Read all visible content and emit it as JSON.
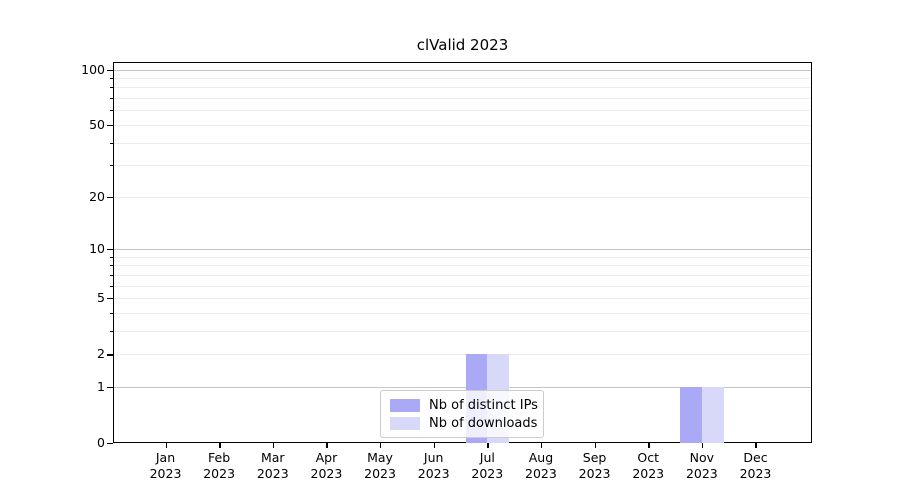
{
  "chart_data": {
    "type": "bar",
    "title": "clValid 2023",
    "categories": [
      "Jan 2023",
      "Feb 2023",
      "Mar 2023",
      "Apr 2023",
      "May 2023",
      "Jun 2023",
      "Jul 2023",
      "Aug 2023",
      "Sep 2023",
      "Oct 2023",
      "Nov 2023",
      "Dec 2023"
    ],
    "series": [
      {
        "name": "Nb of distinct IPs",
        "color": "#a9a9f6",
        "values": [
          0,
          0,
          0,
          0,
          0,
          0,
          2,
          0,
          0,
          0,
          1,
          0
        ]
      },
      {
        "name": "Nb of downloads",
        "color": "#d8d8f9",
        "values": [
          0,
          0,
          0,
          0,
          0,
          0,
          2,
          0,
          0,
          0,
          1,
          0
        ]
      }
    ],
    "yscale": "log1p",
    "ylim": [
      0,
      110
    ],
    "yticks_labeled": [
      0,
      1,
      2,
      5,
      10,
      20,
      50,
      100
    ],
    "yticks_major": [
      1,
      10,
      100
    ],
    "yticks_minor_unlabeled": [
      3,
      4,
      6,
      7,
      8,
      9,
      30,
      40,
      60,
      70,
      80,
      90
    ],
    "grid": {
      "major_color": "#c5c5c5",
      "minor_color": "#ececec",
      "visible": true
    },
    "legend": {
      "position": "lower center"
    }
  }
}
